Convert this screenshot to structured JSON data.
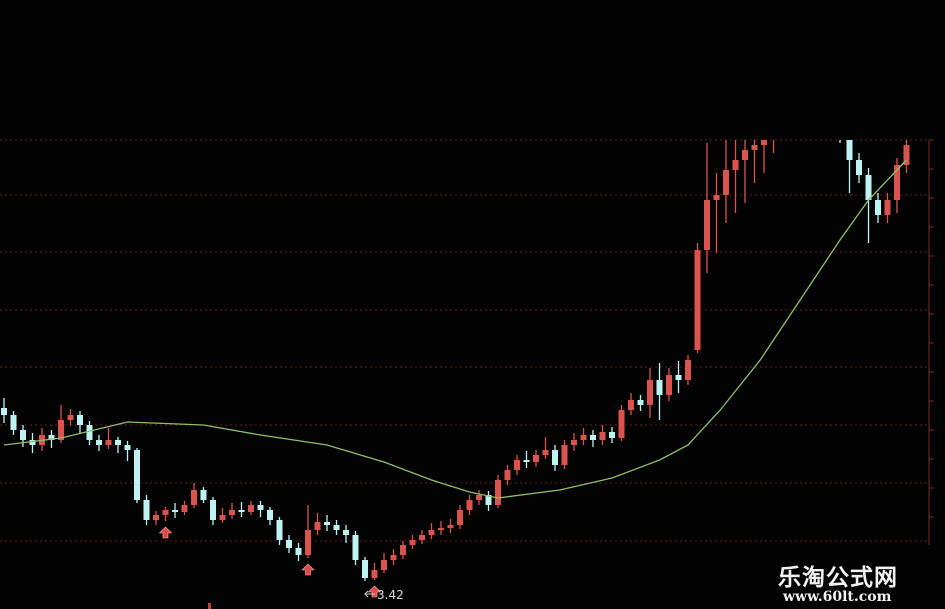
{
  "chart_data": {
    "type": "candlestick",
    "title": "",
    "xlabel": "",
    "ylabel": "",
    "grid": true,
    "up_color": "#d9534f",
    "down_color": "#bff2f2",
    "ma_color": "#8fbf6a",
    "grid_color": "#6a1e1e",
    "candles": [
      [
        5.15,
        5.25,
        5.0,
        5.08
      ],
      [
        5.08,
        5.12,
        4.88,
        4.93
      ],
      [
        4.93,
        4.98,
        4.76,
        4.83
      ],
      [
        4.83,
        4.9,
        4.7,
        4.78
      ],
      [
        4.78,
        4.95,
        4.72,
        4.88
      ],
      [
        4.88,
        4.93,
        4.75,
        4.83
      ],
      [
        4.83,
        5.18,
        4.8,
        5.03
      ],
      [
        5.03,
        5.14,
        4.98,
        5.08
      ],
      [
        5.08,
        5.12,
        4.9,
        4.98
      ],
      [
        4.98,
        5.02,
        4.78,
        4.83
      ],
      [
        4.83,
        4.88,
        4.72,
        4.78
      ],
      [
        4.78,
        4.95,
        4.74,
        4.83
      ],
      [
        4.83,
        4.86,
        4.7,
        4.78
      ],
      [
        4.78,
        4.82,
        4.62,
        4.73
      ],
      [
        4.73,
        4.75,
        4.2,
        4.23
      ],
      [
        4.23,
        4.28,
        3.98,
        4.03
      ],
      [
        4.03,
        4.12,
        3.98,
        4.08
      ],
      [
        4.08,
        4.16,
        4.02,
        4.13
      ],
      [
        4.13,
        4.2,
        4.05,
        4.11
      ],
      [
        4.11,
        4.22,
        4.08,
        4.18
      ],
      [
        4.18,
        4.4,
        4.15,
        4.33
      ],
      [
        4.33,
        4.36,
        4.2,
        4.23
      ],
      [
        4.23,
        4.26,
        3.98,
        4.03
      ],
      [
        4.03,
        4.15,
        4.0,
        4.08
      ],
      [
        4.08,
        4.2,
        4.04,
        4.13
      ],
      [
        4.13,
        4.21,
        4.06,
        4.11
      ],
      [
        4.11,
        4.22,
        4.08,
        4.18
      ],
      [
        4.18,
        4.22,
        4.06,
        4.13
      ],
      [
        4.13,
        4.16,
        3.98,
        4.03
      ],
      [
        4.03,
        4.06,
        3.78,
        3.83
      ],
      [
        3.83,
        3.88,
        3.7,
        3.75
      ],
      [
        3.75,
        3.8,
        3.62,
        3.68
      ],
      [
        3.68,
        4.18,
        3.65,
        3.93
      ],
      [
        3.93,
        4.1,
        3.88,
        4.01
      ],
      [
        4.01,
        4.08,
        3.92,
        3.98
      ],
      [
        3.98,
        4.03,
        3.88,
        3.93
      ],
      [
        3.93,
        3.98,
        3.8,
        3.88
      ],
      [
        3.88,
        3.92,
        3.58,
        3.63
      ],
      [
        3.63,
        3.66,
        3.42,
        3.45
      ],
      [
        3.45,
        3.6,
        3.43,
        3.53
      ],
      [
        3.53,
        3.7,
        3.5,
        3.63
      ],
      [
        3.63,
        3.74,
        3.58,
        3.68
      ],
      [
        3.68,
        3.82,
        3.64,
        3.78
      ],
      [
        3.78,
        3.88,
        3.74,
        3.83
      ],
      [
        3.83,
        3.93,
        3.79,
        3.88
      ],
      [
        3.88,
        4.0,
        3.84,
        3.93
      ],
      [
        3.93,
        4.02,
        3.88,
        3.95
      ],
      [
        3.95,
        4.04,
        3.9,
        3.98
      ],
      [
        3.98,
        4.18,
        3.94,
        4.13
      ],
      [
        4.13,
        4.28,
        4.08,
        4.23
      ],
      [
        4.23,
        4.33,
        4.18,
        4.28
      ],
      [
        4.28,
        4.32,
        4.12,
        4.18
      ],
      [
        4.18,
        4.48,
        4.15,
        4.43
      ],
      [
        4.43,
        4.58,
        4.38,
        4.53
      ],
      [
        4.53,
        4.68,
        4.48,
        4.63
      ],
      [
        4.63,
        4.72,
        4.55,
        4.61
      ],
      [
        4.61,
        4.73,
        4.56,
        4.68
      ],
      [
        4.68,
        4.86,
        4.64,
        4.73
      ],
      [
        4.73,
        4.78,
        4.52,
        4.58
      ],
      [
        4.58,
        4.83,
        4.54,
        4.78
      ],
      [
        4.78,
        4.9,
        4.72,
        4.83
      ],
      [
        4.83,
        4.95,
        4.78,
        4.88
      ],
      [
        4.88,
        4.93,
        4.76,
        4.83
      ],
      [
        4.83,
        4.98,
        4.78,
        4.91
      ],
      [
        4.91,
        4.96,
        4.8,
        4.85
      ],
      [
        4.85,
        5.18,
        4.82,
        5.13
      ],
      [
        5.13,
        5.3,
        5.08,
        5.23
      ],
      [
        5.23,
        5.28,
        5.12,
        5.18
      ],
      [
        5.18,
        5.55,
        5.05,
        5.43
      ],
      [
        5.43,
        5.6,
        5.03,
        5.28
      ],
      [
        5.28,
        5.55,
        5.22,
        5.48
      ],
      [
        5.48,
        5.62,
        5.3,
        5.43
      ],
      [
        5.43,
        5.68,
        5.38,
        5.63
      ],
      [
        5.73,
        6.8,
        5.7,
        6.73
      ],
      [
        6.73,
        7.8,
        6.5,
        7.23
      ],
      [
        7.23,
        7.5,
        6.7,
        7.28
      ],
      [
        7.28,
        7.85,
        7.0,
        7.53
      ],
      [
        7.53,
        7.9,
        7.1,
        7.63
      ],
      [
        7.63,
        7.9,
        7.2,
        7.73
      ],
      [
        7.73,
        7.95,
        7.4,
        7.78
      ],
      [
        7.78,
        8.0,
        7.5,
        7.83
      ],
      [
        7.83,
        8.1,
        7.7,
        8.0
      ],
      [
        8.0,
        8.3,
        7.9,
        8.2
      ],
      [
        8.2,
        8.3,
        8.0,
        8.1
      ],
      [
        8.1,
        8.4,
        8.0,
        8.3
      ],
      [
        8.3,
        8.5,
        8.2,
        8.4
      ],
      [
        8.4,
        8.5,
        8.1,
        8.2
      ],
      [
        8.2,
        8.3,
        7.95,
        8.0
      ],
      [
        8.0,
        8.1,
        7.8,
        7.9
      ],
      [
        7.9,
        8.0,
        7.3,
        7.63
      ],
      [
        7.63,
        7.7,
        7.4,
        7.48
      ],
      [
        7.48,
        7.55,
        6.8,
        7.23
      ],
      [
        7.23,
        7.3,
        7.0,
        7.08
      ],
      [
        7.08,
        7.3,
        7.0,
        7.23
      ],
      [
        7.23,
        7.65,
        7.1,
        7.58
      ],
      [
        7.58,
        7.9,
        7.5,
        7.78
      ]
    ],
    "moving_average": [
      [
        0,
        4.78
      ],
      [
        6,
        4.85
      ],
      [
        13,
        5.01
      ],
      [
        21,
        4.98
      ],
      [
        27,
        4.88
      ],
      [
        34,
        4.78
      ],
      [
        40,
        4.61
      ],
      [
        45,
        4.43
      ],
      [
        49,
        4.31
      ],
      [
        52,
        4.25
      ],
      [
        58.5,
        4.33
      ],
      [
        64,
        4.45
      ],
      [
        69,
        4.63
      ],
      [
        72,
        4.78
      ],
      [
        75.4,
        5.13
      ],
      [
        79.6,
        5.63
      ],
      [
        83.8,
        6.23
      ],
      [
        88,
        6.83
      ],
      [
        91,
        7.23
      ],
      [
        95,
        7.63
      ]
    ],
    "signal_markers": [
      17,
      32,
      39
    ],
    "annotations": [
      {
        "candle": 38,
        "text": "3.42"
      }
    ]
  },
  "watermark": {
    "name": "乐淘公式网",
    "url": "www.60lt.com"
  }
}
